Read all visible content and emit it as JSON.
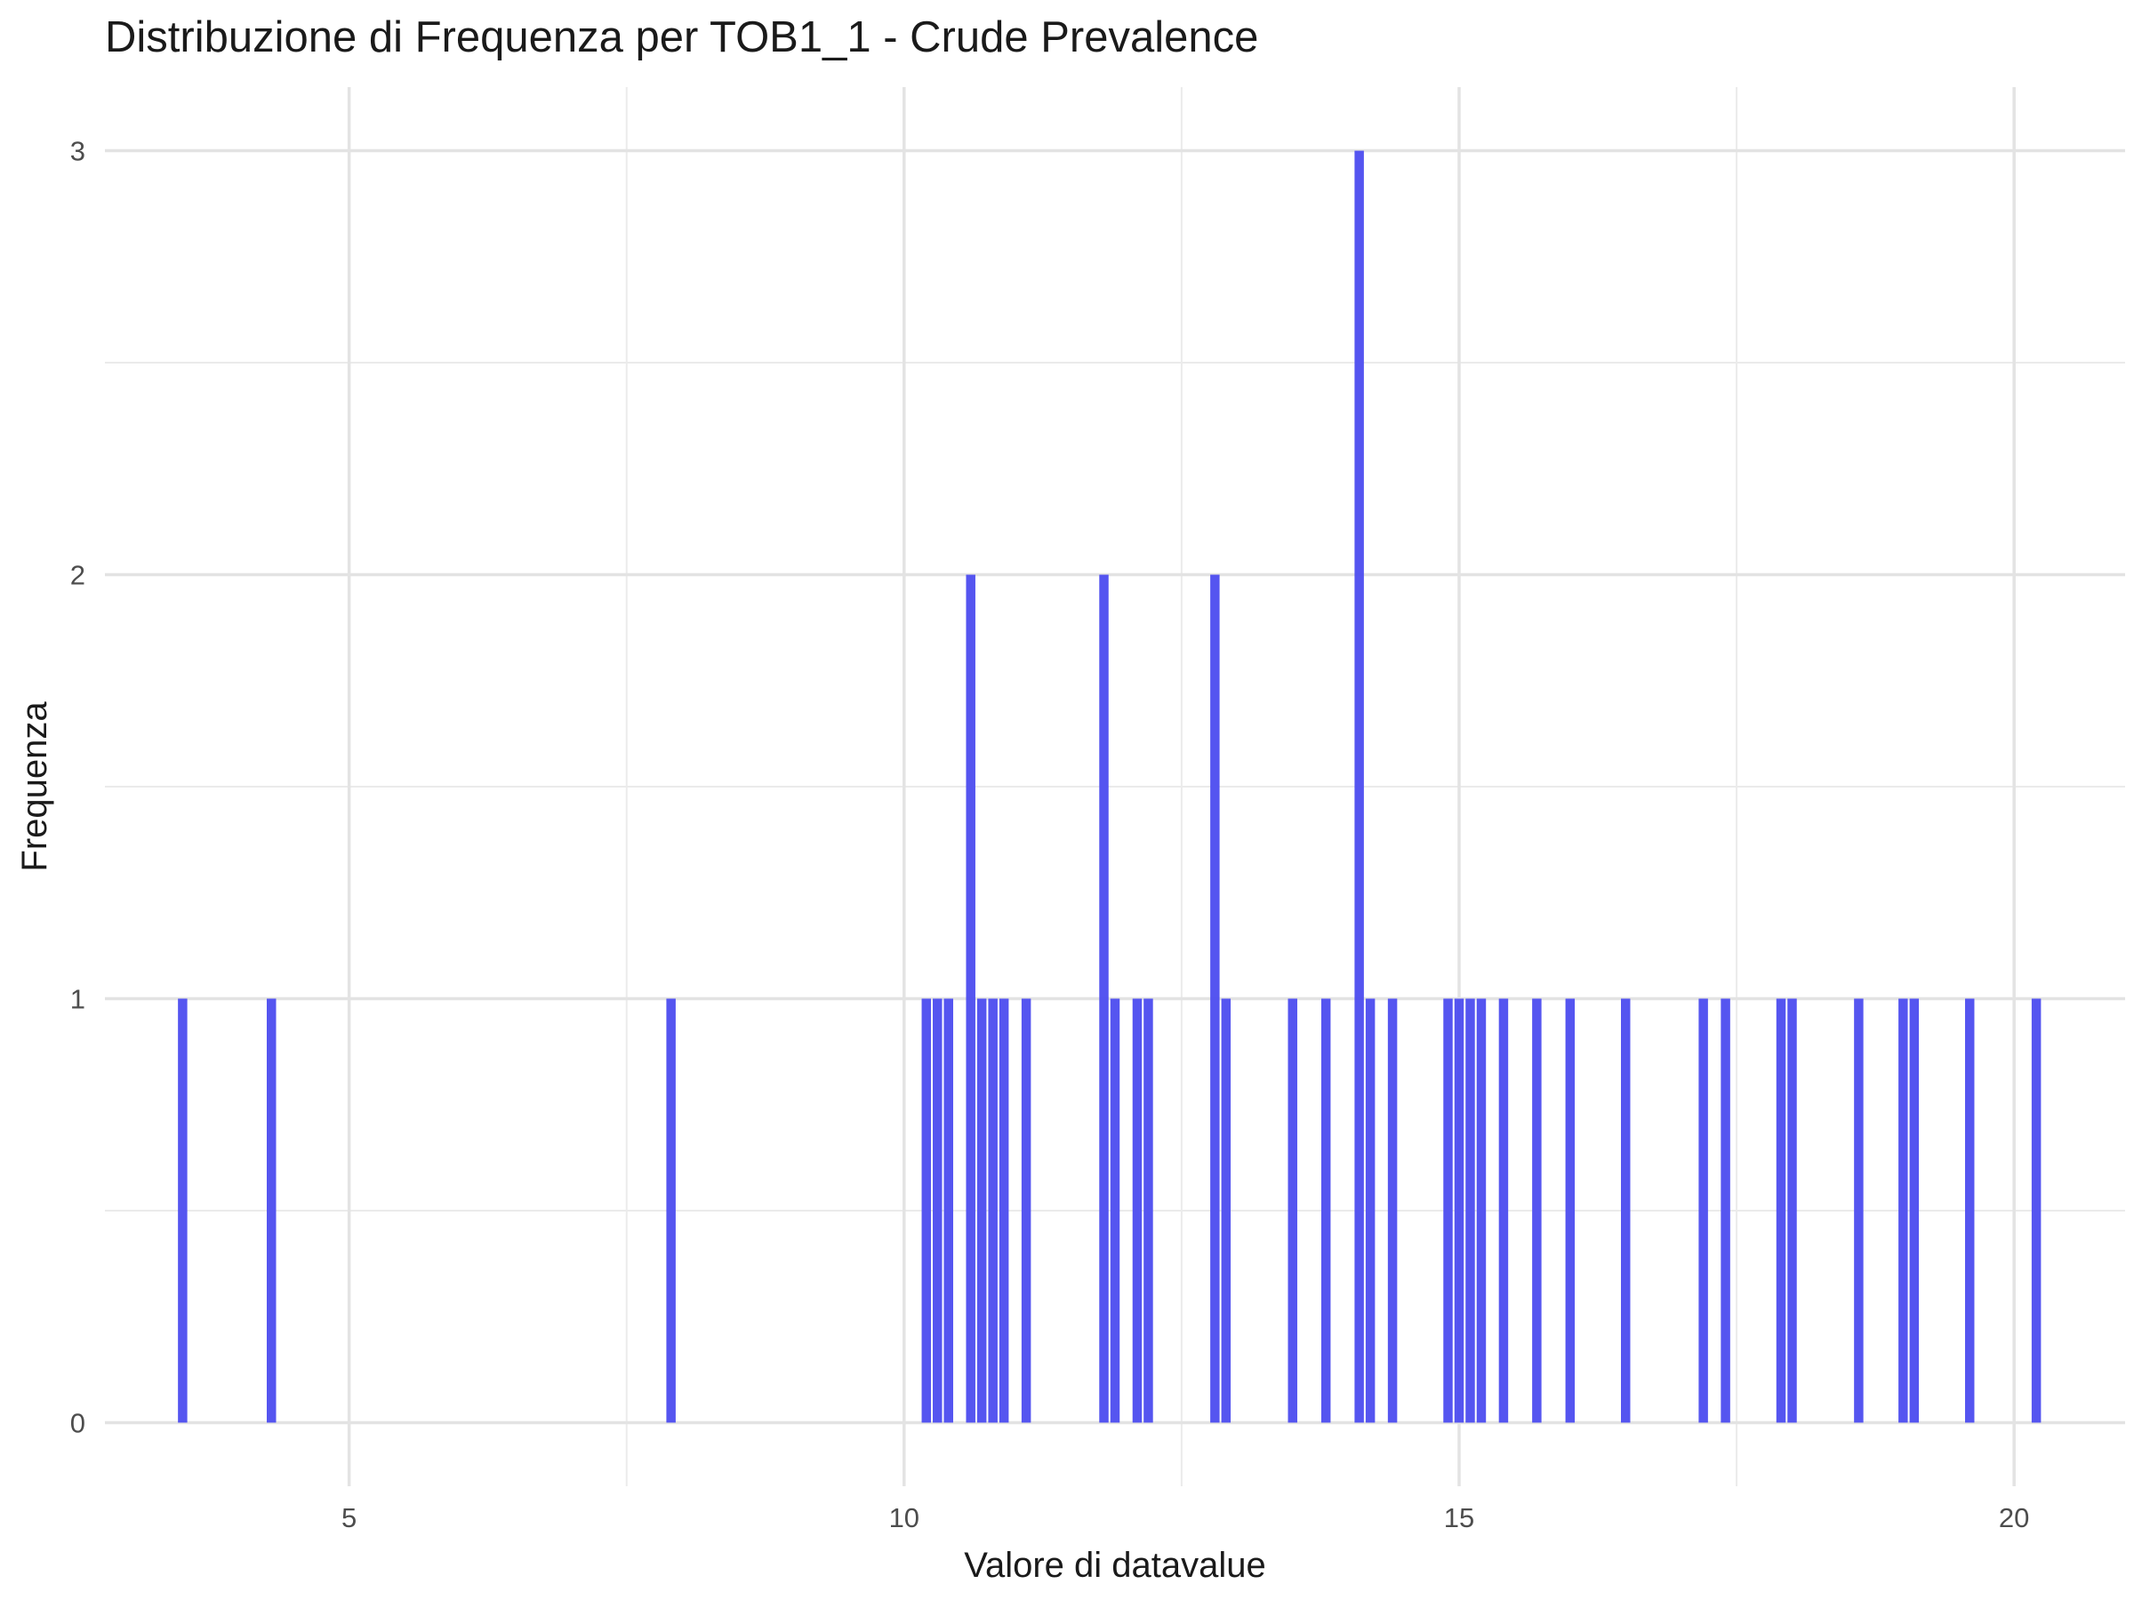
{
  "chart_data": {
    "type": "bar",
    "title": "Distribuzione di Frequenza per TOB1_1 - Crude Prevalence",
    "xlabel": "Valore di datavalue",
    "ylabel": "Frequenza",
    "xlim": [
      2.8,
      21.0
    ],
    "ylim": [
      -0.15,
      3.15
    ],
    "x_ticks": [
      5,
      10,
      15,
      20
    ],
    "x_tick_labels": [
      "5",
      "10",
      "15",
      "20"
    ],
    "y_ticks": [
      0,
      1,
      2,
      3
    ],
    "y_tick_labels": [
      "0",
      "1",
      "2",
      "3"
    ],
    "grid": true,
    "legend": "none",
    "bar_color": "#5050f0",
    "bin_width": 0.1,
    "x": [
      3.5,
      4.3,
      7.9,
      10.2,
      10.3,
      10.4,
      10.6,
      10.7,
      10.8,
      10.9,
      11.1,
      11.8,
      11.9,
      12.1,
      12.2,
      12.8,
      12.9,
      13.5,
      13.8,
      14.1,
      14.2,
      14.4,
      14.9,
      15.0,
      15.1,
      15.2,
      15.4,
      15.7,
      16.0,
      16.5,
      17.2,
      17.4,
      17.9,
      18.0,
      18.6,
      19.0,
      19.1,
      19.6,
      20.2
    ],
    "values": [
      1,
      1,
      1,
      1,
      1,
      1,
      2,
      1,
      1,
      1,
      1,
      2,
      1,
      1,
      1,
      2,
      1,
      1,
      1,
      3,
      1,
      1,
      1,
      1,
      1,
      1,
      1,
      1,
      1,
      1,
      1,
      1,
      1,
      1,
      1,
      1,
      1,
      1,
      1
    ]
  }
}
